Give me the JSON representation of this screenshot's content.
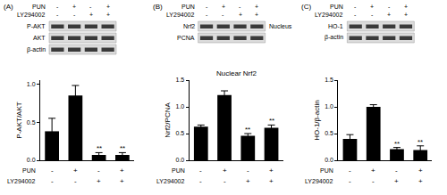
{
  "chart_data": [
    {
      "type": "bar",
      "title": "(A)",
      "blots": [
        "P-AKT",
        "AKT",
        "β-actin"
      ],
      "conditions": [
        {
          "name": "PUN",
          "values": [
            "-",
            "+",
            "-",
            "+"
          ]
        },
        {
          "name": "LY294002",
          "values": [
            "-",
            "-",
            "+",
            "+"
          ]
        }
      ],
      "categories": [
        null,
        null,
        null,
        null
      ],
      "values": [
        0.38,
        0.85,
        0.07,
        0.07
      ],
      "errors": [
        0.17,
        0.13,
        0.03,
        0.03
      ],
      "significance": [
        null,
        null,
        "**",
        "**"
      ],
      "y_label": "P-AKT/AKT",
      "color": "#000000",
      "ylim": [
        0,
        1.05
      ],
      "yticks": [
        {
          "value": 0,
          "label": "0.0"
        },
        {
          "value": 0.5,
          "label": "0.5"
        },
        {
          "value": 1,
          "label": "1.0"
        }
      ]
    },
    {
      "type": "bar",
      "title": "(B)",
      "subtitle": "Nuclear Nrf2",
      "blots": [
        "Nrf2",
        "PCNA"
      ],
      "blot_note": "Nucleus",
      "conditions": [
        {
          "name": "PUN",
          "values": [
            "-",
            "+",
            "-",
            "+"
          ]
        },
        {
          "name": "LY294002",
          "values": [
            "-",
            "-",
            "+",
            "+"
          ]
        }
      ],
      "categories": [
        null,
        null,
        null,
        null
      ],
      "values": [
        0.63,
        1.22,
        0.46,
        0.61
      ],
      "errors": [
        0.03,
        0.08,
        0.04,
        0.05
      ],
      "significance": [
        null,
        null,
        "**",
        "**"
      ],
      "y_label": "Nrf2/PCNA",
      "color": "#000000",
      "ylim": [
        0,
        1.5
      ],
      "yticks": [
        {
          "value": 0,
          "label": "0.0"
        },
        {
          "value": 0.5,
          "label": "0.5"
        },
        {
          "value": 1,
          "label": "1.0"
        },
        {
          "value": 1.5,
          "label": "1.5"
        }
      ]
    },
    {
      "type": "bar",
      "title": "(C)",
      "blots": [
        "HO-1",
        "β-actin"
      ],
      "conditions": [
        {
          "name": "PUN",
          "values": [
            "-",
            "+",
            "-",
            "+"
          ]
        },
        {
          "name": "LY294002",
          "values": [
            "-",
            "-",
            "+",
            "+"
          ]
        }
      ],
      "categories": [
        null,
        null,
        null,
        null
      ],
      "values": [
        0.4,
        1.0,
        0.21,
        0.19
      ],
      "errors": [
        0.08,
        0.04,
        0.03,
        0.08
      ],
      "significance": [
        null,
        null,
        "**",
        "**"
      ],
      "y_label": "HO-1/β-actin",
      "color": "#000000",
      "ylim": [
        0,
        1.5
      ],
      "yticks": [
        {
          "value": 0,
          "label": "0.0"
        },
        {
          "value": 0.5,
          "label": "0.5"
        },
        {
          "value": 1,
          "label": "1.0"
        },
        {
          "value": 1.5,
          "label": "1.5"
        }
      ]
    }
  ]
}
